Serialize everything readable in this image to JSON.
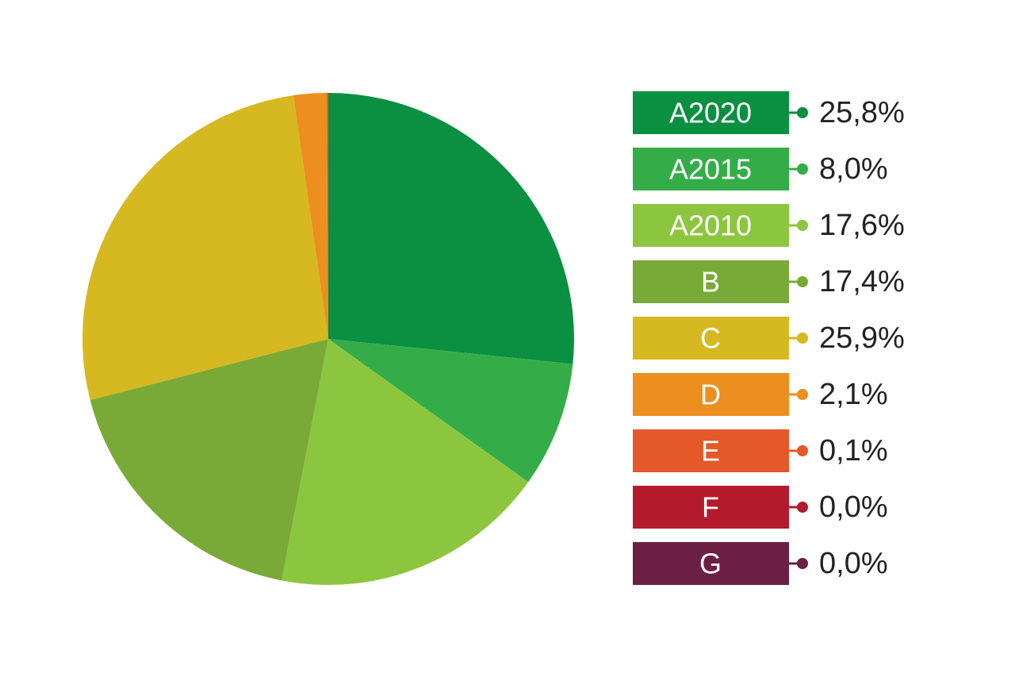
{
  "chart_data": {
    "type": "pie",
    "categories": [
      "A2020",
      "A2015",
      "A2010",
      "B",
      "C",
      "D",
      "E",
      "F",
      "G"
    ],
    "values": [
      25.8,
      8.0,
      17.6,
      17.4,
      25.9,
      2.1,
      0.1,
      0.0,
      0.0
    ],
    "value_labels": [
      "25,8%",
      "8,0%",
      "17,6%",
      "17,4%",
      "25,9%",
      "2,1%",
      "0,1%",
      "0,0%",
      "0,0%"
    ],
    "colors": [
      "#0b8f40",
      "#34ad48",
      "#8cc63f",
      "#79aa37",
      "#d6b820",
      "#ec8f1e",
      "#e5582a",
      "#b31b2c",
      "#6b1f42"
    ],
    "legend": "right"
  }
}
